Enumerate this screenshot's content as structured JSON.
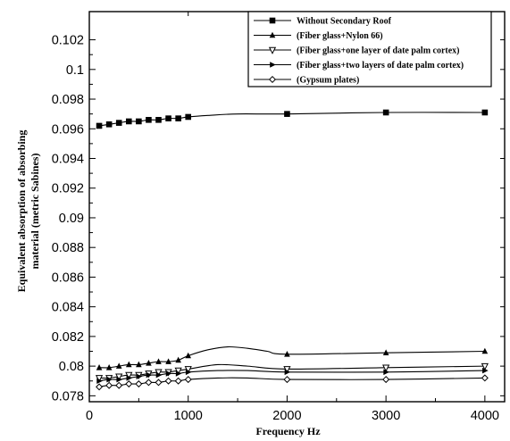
{
  "chart_data": {
    "type": "line",
    "title": "",
    "xlabel": "Frequency Hz",
    "ylabel_lines": [
      "Equivalent absorption of absorbing",
      "material (metric Sabines)"
    ],
    "xlim": [
      0,
      4200
    ],
    "ylim": [
      0.0776,
      0.1039
    ],
    "xticks": [
      0,
      1000,
      2000,
      3000,
      4000
    ],
    "yticks": [
      0.078,
      0.08,
      0.082,
      0.084,
      0.086,
      0.088,
      0.09,
      0.092,
      0.094,
      0.096,
      0.098,
      0.1,
      0.102
    ],
    "ytick_labels": [
      "0.078",
      "0.08",
      "0.082",
      "0.084",
      "0.086",
      "0.088",
      "0.09",
      "0.092",
      "0.094",
      "0.096",
      "0.098",
      "0.1",
      "0.102"
    ],
    "grid": false,
    "legend_position": "top-right",
    "series": [
      {
        "name": "Without Secondary Roof",
        "marker": "square",
        "x": [
          100,
          200,
          300,
          400,
          500,
          600,
          700,
          800,
          900,
          1000,
          2000,
          3000,
          4000
        ],
        "y": [
          0.0962,
          0.0963,
          0.0964,
          0.0965,
          0.0965,
          0.0966,
          0.0966,
          0.0967,
          0.0967,
          0.0968,
          0.097,
          0.0971,
          0.0971
        ],
        "curve": [
          [
            1200,
            0.0969
          ],
          [
            1500,
            0.097
          ]
        ]
      },
      {
        "name": "(Fiber glass+Nylon 66)",
        "marker": "triangle-up",
        "x": [
          100,
          200,
          300,
          400,
          500,
          600,
          700,
          800,
          900,
          1000,
          2000,
          3000,
          4000
        ],
        "y": [
          0.0799,
          0.0799,
          0.08,
          0.0801,
          0.0801,
          0.0802,
          0.0803,
          0.0803,
          0.0804,
          0.0807,
          0.0808,
          0.0809,
          0.081
        ],
        "curve": [
          [
            1200,
            0.0811
          ],
          [
            1400,
            0.0813
          ],
          [
            1600,
            0.0812
          ],
          [
            1800,
            0.081
          ]
        ]
      },
      {
        "name": "(Fiber glass+one layer of date palm cortex)",
        "marker": "triangle-down",
        "x": [
          100,
          200,
          300,
          400,
          500,
          600,
          700,
          800,
          900,
          1000,
          2000,
          3000,
          4000
        ],
        "y": [
          0.0792,
          0.0792,
          0.0793,
          0.0794,
          0.0794,
          0.0795,
          0.0796,
          0.0796,
          0.0797,
          0.0798,
          0.0798,
          0.0799,
          0.08
        ],
        "curve": [
          [
            1300,
            0.0801
          ],
          [
            1600,
            0.08
          ]
        ]
      },
      {
        "name": "(Fiber glass+two layers of date palm cortex)",
        "marker": "triangle-right",
        "x": [
          100,
          200,
          300,
          400,
          500,
          600,
          700,
          800,
          900,
          1000,
          2000,
          3000,
          4000
        ],
        "y": [
          0.079,
          0.0791,
          0.0791,
          0.0792,
          0.0793,
          0.0794,
          0.0794,
          0.0795,
          0.0795,
          0.0796,
          0.0796,
          0.0796,
          0.0797
        ],
        "curve": [
          [
            1300,
            0.0797
          ],
          [
            1600,
            0.0797
          ]
        ]
      },
      {
        "name": "(Gypsum plates)",
        "marker": "diamond",
        "x": [
          100,
          200,
          300,
          400,
          500,
          600,
          700,
          800,
          900,
          1000,
          2000,
          3000,
          4000
        ],
        "y": [
          0.0786,
          0.0787,
          0.0787,
          0.0788,
          0.0788,
          0.0789,
          0.0789,
          0.079,
          0.079,
          0.0791,
          0.0791,
          0.0791,
          0.0792
        ],
        "curve": [
          [
            1300,
            0.0792
          ],
          [
            1600,
            0.0792
          ]
        ]
      }
    ]
  }
}
